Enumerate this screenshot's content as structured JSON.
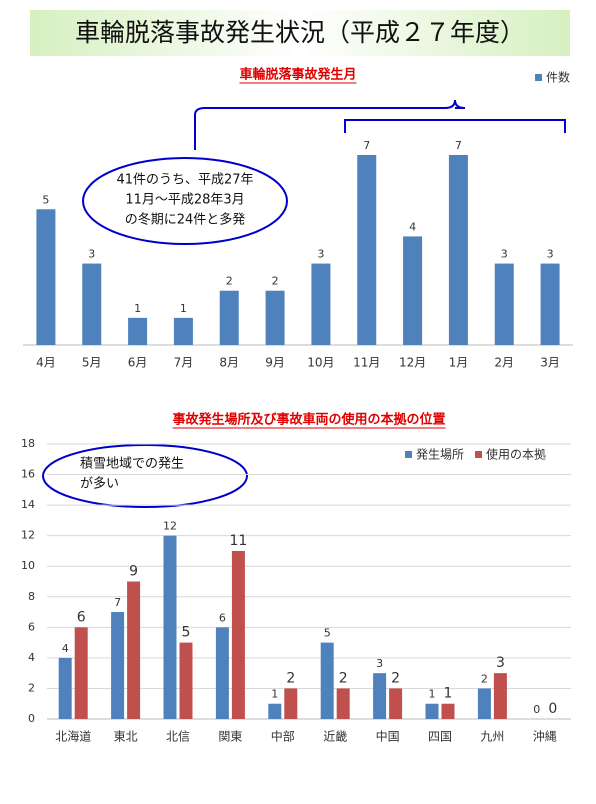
{
  "header": {
    "title": "車輪脱落事故発生状況（平成２７年度）"
  },
  "chart_data": [
    {
      "type": "bar",
      "title": "車輪脱落事故発生月",
      "categories": [
        "4月",
        "5月",
        "6月",
        "7月",
        "8月",
        "9月",
        "10月",
        "11月",
        "12月",
        "1月",
        "2月",
        "3月"
      ],
      "series": [
        {
          "name": "件数",
          "color": "#4f81bd",
          "values": [
            5,
            3,
            1,
            1,
            2,
            2,
            3,
            7,
            4,
            7,
            3,
            3
          ]
        }
      ],
      "annotation": [
        "41件のうち、平成27年",
        "11月～平成28年3月",
        "の冬期に24件と多発"
      ]
    },
    {
      "type": "bar",
      "title": "事故発生場所及び事故車両の使用の本拠の位置",
      "categories": [
        "北海道",
        "東北",
        "北信",
        "関東",
        "中部",
        "近畿",
        "中国",
        "四国",
        "九州",
        "沖縄"
      ],
      "series": [
        {
          "name": "発生場所",
          "color": "#4f81bd",
          "values": [
            4,
            7,
            12,
            6,
            1,
            5,
            3,
            1,
            2,
            0
          ]
        },
        {
          "name": "使用の本拠",
          "color": "#c0504d",
          "values": [
            6,
            9,
            5,
            11,
            2,
            2,
            2,
            1,
            3,
            0
          ]
        }
      ],
      "ylim": [
        0,
        18
      ],
      "yticks": [
        0,
        2,
        4,
        6,
        8,
        10,
        12,
        14,
        16,
        18
      ],
      "grid": true,
      "annotation": [
        "積雪地域での発生",
        "が多い"
      ]
    }
  ]
}
